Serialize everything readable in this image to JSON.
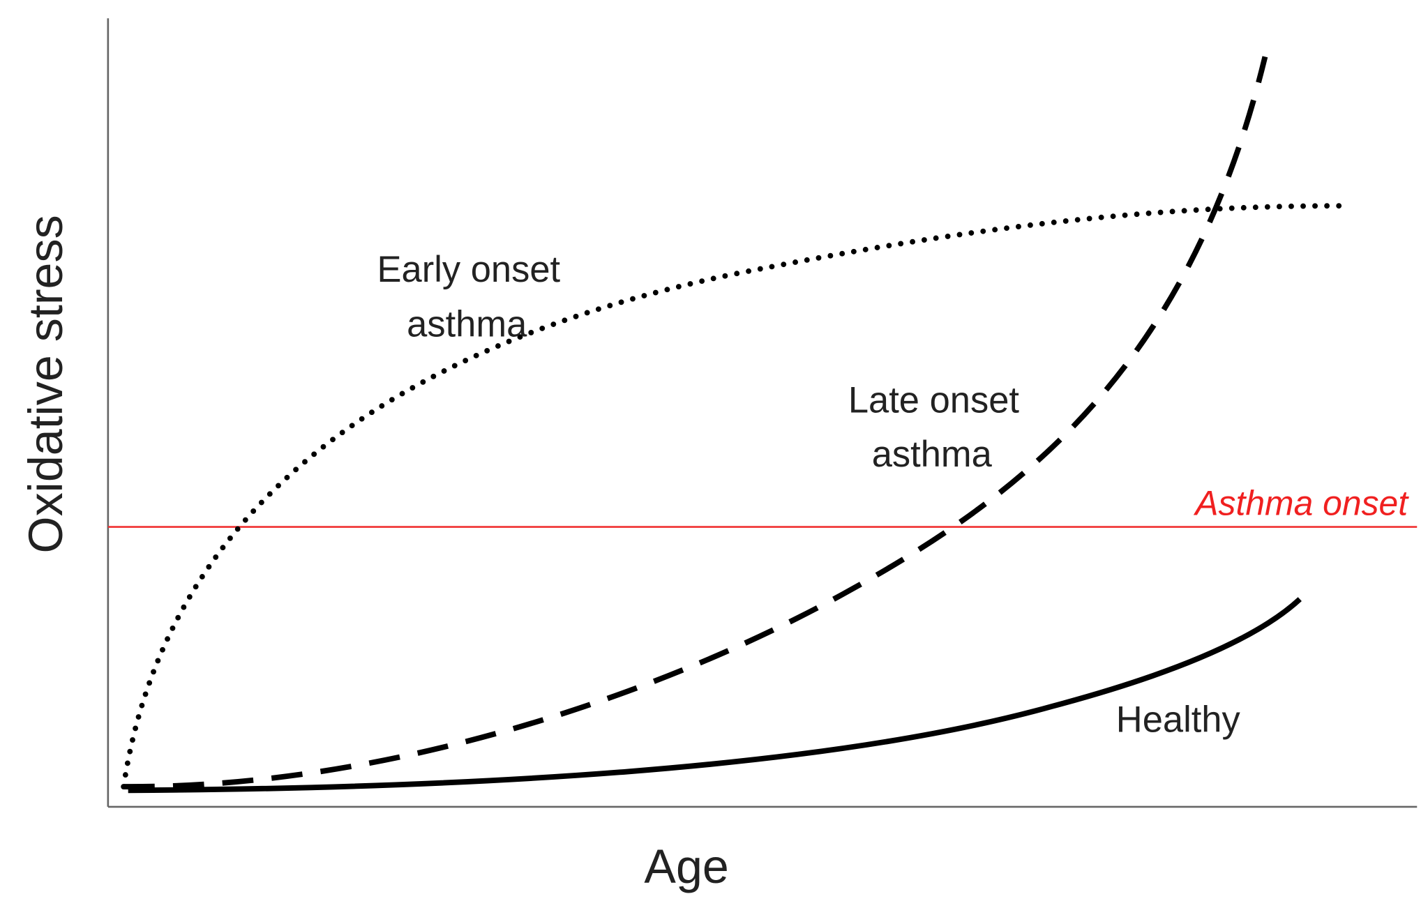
{
  "axes": {
    "x_label": "Age",
    "y_label": "Oxidative stress"
  },
  "threshold": {
    "label": "Asthma onset"
  },
  "curves": [
    {
      "label_lines": [
        "Early onset",
        "asthma"
      ]
    },
    {
      "label_lines": [
        "Late onset",
        "asthma"
      ]
    },
    {
      "label_lines": [
        "Healthy"
      ]
    }
  ]
}
